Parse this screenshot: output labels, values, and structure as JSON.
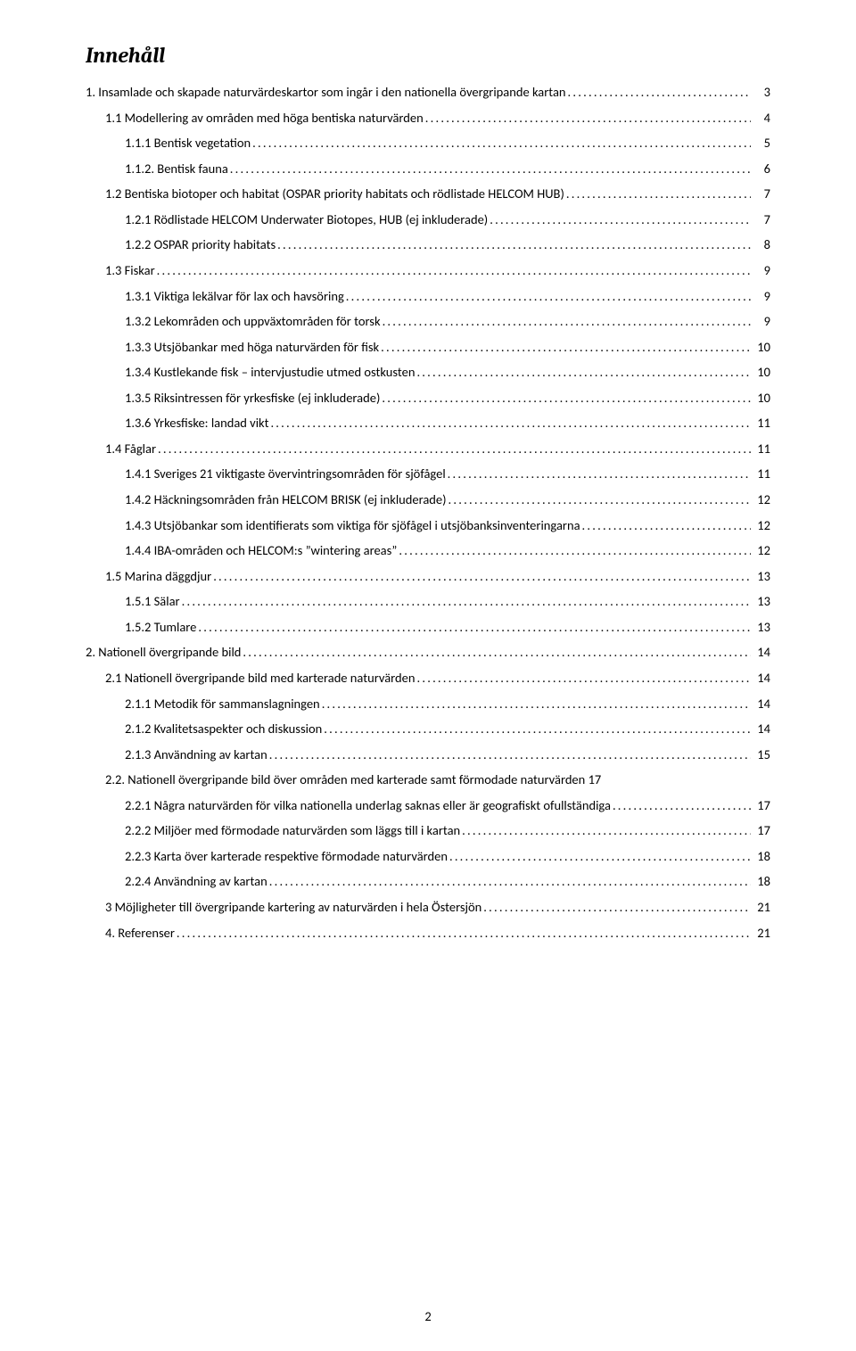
{
  "title": "Innehåll",
  "pageNumber": "2",
  "fontsize_body": 14.5,
  "fontsize_title": 24,
  "colors": {
    "text": "#000000",
    "background": "#ffffff"
  },
  "toc": [
    {
      "indent": 0,
      "label": "1. Insamlade och skapade naturvärdeskartor som ingår i den nationella övergripande kartan",
      "page": "3"
    },
    {
      "indent": 1,
      "label": "1.1 Modellering av områden med höga bentiska naturvärden",
      "page": "4"
    },
    {
      "indent": 2,
      "label": "1.1.1 Bentisk vegetation",
      "page": "5"
    },
    {
      "indent": 2,
      "label": "1.1.2. Bentisk fauna",
      "page": "6"
    },
    {
      "indent": 1,
      "label": "1.2 Bentiska biotoper och habitat (OSPAR priority habitats och rödlistade HELCOM HUB)",
      "page": "7"
    },
    {
      "indent": 2,
      "label": "1.2.1 Rödlistade HELCOM Underwater Biotopes, HUB (ej inkluderade)",
      "page": "7"
    },
    {
      "indent": 2,
      "label": "1.2.2 OSPAR priority habitats",
      "page": "8"
    },
    {
      "indent": 1,
      "label": "1.3 Fiskar",
      "page": "9"
    },
    {
      "indent": 2,
      "label": "1.3.1 Viktiga lekälvar för lax och havsöring",
      "page": "9"
    },
    {
      "indent": 2,
      "label": "1.3.2 Lekområden och uppväxtområden för torsk",
      "page": "9"
    },
    {
      "indent": 2,
      "label": "1.3.3 Utsjöbankar med höga naturvärden för fisk",
      "page": "10"
    },
    {
      "indent": 2,
      "label": "1.3.4 Kustlekande fisk – intervjustudie utmed ostkusten",
      "page": "10"
    },
    {
      "indent": 2,
      "label": "1.3.5 Riksintressen för yrkesfiske (ej inkluderade)",
      "page": "10"
    },
    {
      "indent": 2,
      "label": "1.3.6 Yrkesfiske: landad vikt",
      "page": "11"
    },
    {
      "indent": 1,
      "label": "1.4 Fåglar",
      "page": "11"
    },
    {
      "indent": 2,
      "label": "1.4.1 Sveriges 21 viktigaste övervintringsområden för sjöfågel",
      "page": "11"
    },
    {
      "indent": 2,
      "label": "1.4.2 Häckningsområden från HELCOM BRISK (ej inkluderade)",
      "page": "12"
    },
    {
      "indent": 2,
      "label": "1.4.3 Utsjöbankar som identifierats som viktiga för sjöfågel i utsjöbanksinventeringarna",
      "page": "12"
    },
    {
      "indent": 2,
      "label": "1.4.4 IBA-områden och HELCOM:s ”wintering areas”",
      "page": "12"
    },
    {
      "indent": 1,
      "label": "1.5 Marina däggdjur",
      "page": "13"
    },
    {
      "indent": 2,
      "label": "1.5.1 Sälar",
      "page": "13"
    },
    {
      "indent": 2,
      "label": "1.5.2 Tumlare",
      "page": "13"
    },
    {
      "indent": 0,
      "label": "2. Nationell övergripande bild",
      "page": "14"
    },
    {
      "indent": 1,
      "label": "2.1 Nationell övergripande bild med karterade naturvärden",
      "page": "14"
    },
    {
      "indent": 2,
      "label": "2.1.1 Metodik för sammanslagningen",
      "page": "14"
    },
    {
      "indent": 2,
      "label": "2.1.2 Kvalitetsaspekter och diskussion",
      "page": "14"
    },
    {
      "indent": 2,
      "label": "2.1.3 Användning av kartan",
      "page": "15"
    },
    {
      "indent": 1,
      "label": "2.2. Nationell övergripande bild över områden med karterade samt förmodade naturvärden",
      "page": "17",
      "nodots": true
    },
    {
      "indent": 2,
      "label": "2.2.1 Några naturvärden för vilka nationella underlag saknas eller är geografiskt ofullständiga",
      "page": "17"
    },
    {
      "indent": 2,
      "label": "2.2.2 Miljöer med förmodade naturvärden som läggs till i kartan",
      "page": "17"
    },
    {
      "indent": 2,
      "label": "2.2.3 Karta över karterade respektive förmodade naturvärden",
      "page": "18"
    },
    {
      "indent": 2,
      "label": "2.2.4 Användning av kartan",
      "page": "18"
    },
    {
      "indent": 1,
      "label": "3 Möjligheter till övergripande kartering av naturvärden i hela Östersjön",
      "page": "21"
    },
    {
      "indent": 1,
      "label": "4. Referenser",
      "page": "21"
    }
  ]
}
